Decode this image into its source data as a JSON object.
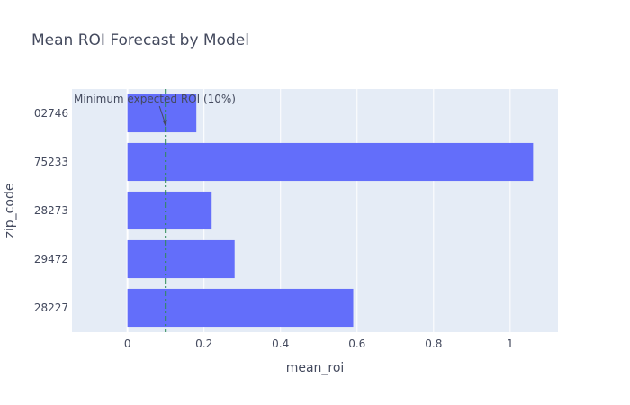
{
  "chart_data": {
    "type": "bar",
    "orientation": "horizontal",
    "title": "Mean ROI Forecast by Model",
    "xlabel": "mean_roi",
    "ylabel": "zip_code",
    "categories": [
      "02746",
      "75233",
      "28273",
      "29472",
      "28227"
    ],
    "values": [
      0.18,
      1.06,
      0.22,
      0.28,
      0.59
    ],
    "xlim": [
      -0.145,
      1.125
    ],
    "xticks": [
      0,
      0.2,
      0.4,
      0.6,
      0.8,
      1
    ],
    "xtick_labels": [
      "0",
      "0.2",
      "0.4",
      "0.6",
      "0.8",
      "1"
    ],
    "grid": true,
    "bar_color": "#636efa",
    "plot_background": "#e5ecf6",
    "reference_line": {
      "x": 0.1,
      "style": "dash-dot",
      "color": "#2e8b57",
      "annotation": "Minimum expected ROI (10%)"
    }
  }
}
